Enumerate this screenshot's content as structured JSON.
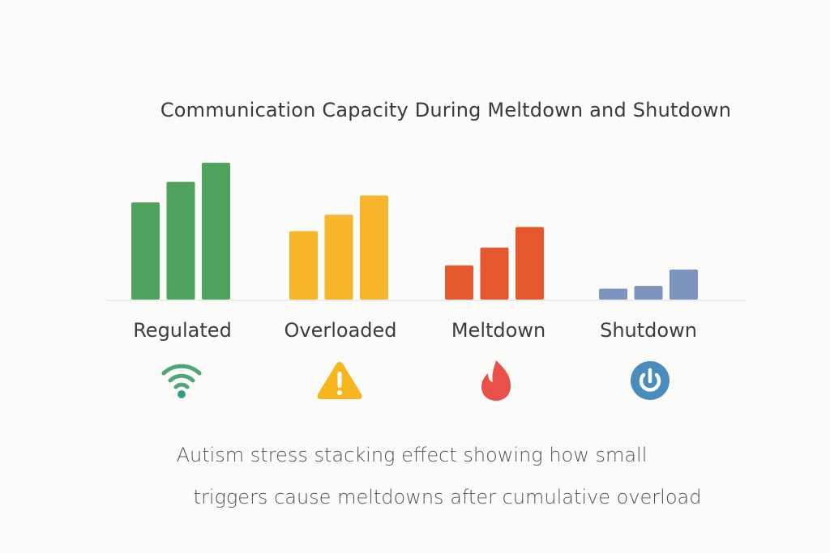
{
  "chart_data": {
    "type": "bar",
    "title": "Communication Capacity During Meltdown and Shutdown",
    "categories": [
      "Regulated",
      "Overloaded",
      "Meltdown",
      "Shutdown"
    ],
    "values": [
      [
        71,
        86,
        100
      ],
      [
        50,
        62,
        76
      ],
      [
        25,
        38,
        53
      ],
      [
        8,
        10,
        22
      ]
    ],
    "colors": [
      "#4fa35c",
      "#f6b52a",
      "#e4582e",
      "#7d95bd"
    ],
    "icons": [
      "wifi-icon",
      "warning-icon",
      "flame-icon",
      "power-icon"
    ],
    "ylim": [
      0,
      100
    ],
    "grid": false,
    "axes_visible": false
  },
  "caption": {
    "line1": "Autism stress stacking effect showing how small",
    "line2": "triggers cause meltdowns after cumulative overload"
  }
}
